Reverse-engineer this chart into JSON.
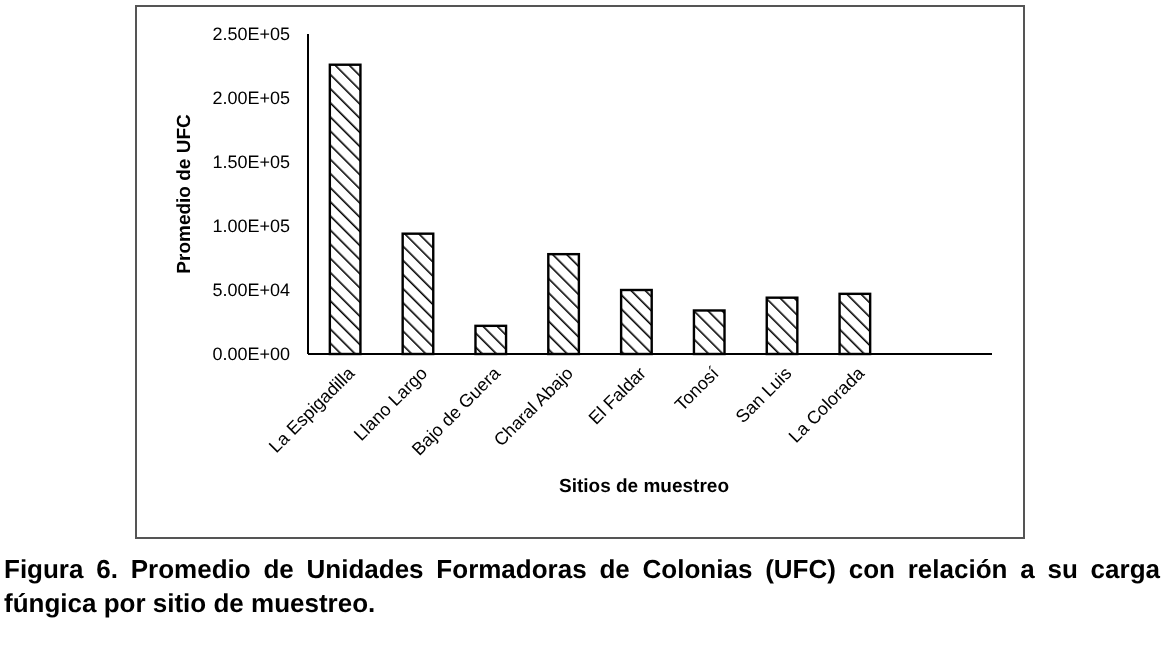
{
  "chart_data": {
    "type": "bar",
    "xlabel": "Sitios de muestreo",
    "ylabel": "Promedio de UFC",
    "categories": [
      "La Espigadilla",
      "Llano Largo",
      "Bajo de Guera",
      "Charal Abajo",
      "El Faldar",
      "Tonosí",
      "San Luis",
      "La Colorada"
    ],
    "values": [
      226000,
      94000,
      22000,
      78000,
      50000,
      34000,
      44000,
      47000
    ],
    "color": "#000000",
    "ylim": [
      0,
      250000
    ],
    "yticks": [
      {
        "value": 0,
        "label": "0.00E+00"
      },
      {
        "value": 50000,
        "label": "5.00E+04"
      },
      {
        "value": 100000,
        "label": "1.00E+05"
      },
      {
        "value": 150000,
        "label": "1.50E+05"
      },
      {
        "value": 200000,
        "label": "2.00E+05"
      },
      {
        "value": 250000,
        "label": "2.50E+05"
      }
    ],
    "annotations": [
      "Figura 6. Promedio de Unidades Formadoras de Colonias (UFC) con relación a su carga fúngica por sitio de muestreo."
    ]
  }
}
